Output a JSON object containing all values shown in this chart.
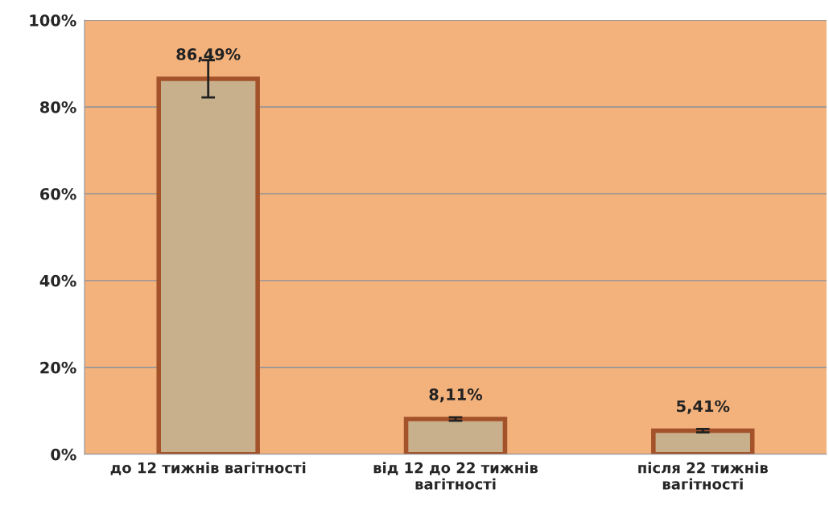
{
  "chart_data": {
    "type": "bar",
    "categories": [
      "до 12 тижнів вагітності",
      "від 12 до 22 тижнів\nвагітності",
      "після 22 тижнів\nвагітності"
    ],
    "values": [
      86.49,
      8.11,
      5.41
    ],
    "value_labels": [
      "86,49%",
      "8,11%",
      "5,41%"
    ],
    "errors": [
      4.3,
      0.4,
      0.4
    ],
    "color": "#c9b08c",
    "ylim": [
      0,
      100
    ],
    "yticks": [
      {
        "value": 0,
        "label": "0%"
      },
      {
        "value": 20,
        "label": "20%"
      },
      {
        "value": 40,
        "label": "40%"
      },
      {
        "value": 60,
        "label": "60%"
      },
      {
        "value": 80,
        "label": "80%"
      },
      {
        "value": 100,
        "label": "100%"
      }
    ],
    "grid": "y",
    "legend": false
  }
}
